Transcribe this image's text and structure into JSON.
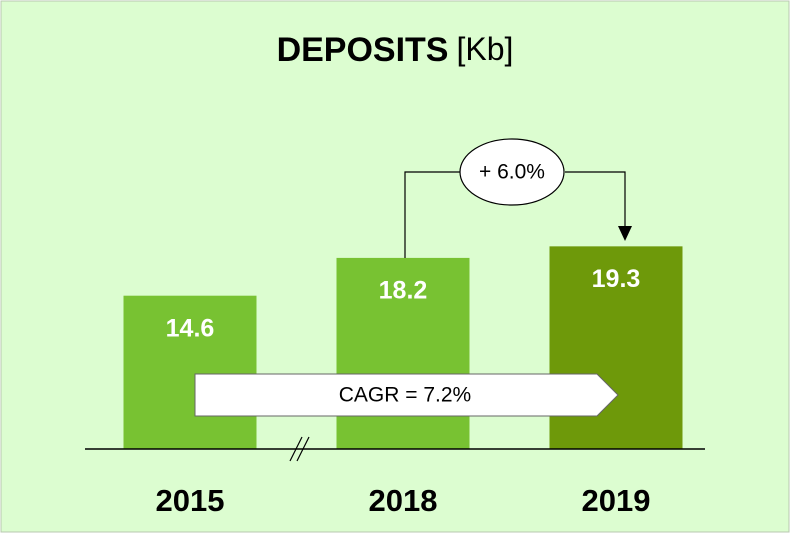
{
  "chart_data": {
    "type": "bar",
    "title": "DEPOSITS",
    "unit": "[Kb]",
    "categories": [
      "2015",
      "2018",
      "2019"
    ],
    "values": [
      14.6,
      18.2,
      19.3
    ],
    "colors": [
      "#78c232",
      "#78c232",
      "#6e990a"
    ],
    "annotations": [
      {
        "text": "+ 6.0%"
      },
      {
        "text": "CAGR = 7.2%"
      }
    ]
  }
}
